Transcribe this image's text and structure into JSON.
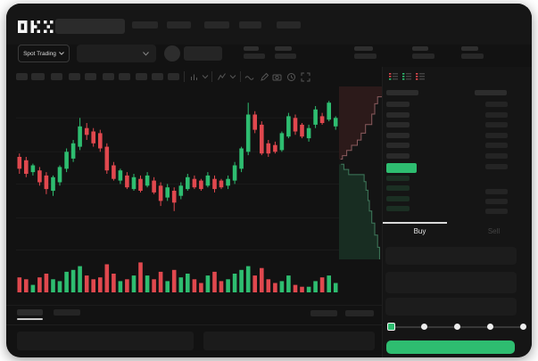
{
  "brand": {
    "name": "OKX"
  },
  "header": {
    "market_selector_label": "Spot Trading"
  },
  "colors": {
    "up": "#2EBD70",
    "down": "#E0484E",
    "buy_button": "#2EBD70",
    "tab_indicator": "#d9d9d9"
  },
  "trade_panel": {
    "buy_tab": "Buy",
    "sell_tab": "Sell",
    "slider": {
      "stops": 5,
      "active": 0
    }
  },
  "order_book": {
    "layout_icons": [
      "book-combined",
      "book-bids-only",
      "book-asks-only"
    ],
    "asks": [
      {
        "amt": true
      },
      {
        "amt": true
      },
      {
        "amt": true
      },
      {
        "amt": true
      },
      {
        "amt": true
      },
      {
        "amt": true
      }
    ],
    "last_price": {
      "highlight": "up",
      "amt": true
    },
    "bids": [
      {
        "amt": false
      },
      {
        "amt": true
      },
      {
        "amt": true
      },
      {
        "amt": true
      }
    ]
  },
  "chart_data": {
    "type": "candlestick",
    "title": "",
    "xlabel": "",
    "ylabel": "",
    "ylim": [
      0,
      100
    ],
    "grid": true,
    "gridlines_price": [
      83,
      63,
      44,
      24,
      5
    ],
    "candles": [
      [
        60,
        62,
        50,
        53
      ],
      [
        58,
        60,
        48,
        50
      ],
      [
        51,
        56,
        49,
        55
      ],
      [
        52,
        54,
        43,
        45
      ],
      [
        49,
        51,
        38,
        41
      ],
      [
        40,
        49,
        37,
        48
      ],
      [
        45,
        55,
        43,
        54
      ],
      [
        53,
        65,
        51,
        63
      ],
      [
        59,
        70,
        57,
        68
      ],
      [
        66,
        83,
        64,
        78
      ],
      [
        77,
        80,
        70,
        73
      ],
      [
        75,
        77,
        66,
        68
      ],
      [
        74,
        76,
        63,
        65
      ],
      [
        66,
        68,
        50,
        52
      ],
      [
        55,
        57,
        46,
        47
      ],
      [
        46,
        53,
        44,
        52
      ],
      [
        49,
        51,
        41,
        42
      ],
      [
        41,
        50,
        40,
        48
      ],
      [
        47,
        49,
        39,
        40
      ],
      [
        43,
        51,
        42,
        49
      ],
      [
        46,
        48,
        38,
        39
      ],
      [
        43,
        45,
        31,
        34
      ],
      [
        36,
        44,
        34,
        42
      ],
      [
        40,
        42,
        28,
        33
      ],
      [
        37,
        45,
        35,
        43
      ],
      [
        41,
        50,
        40,
        48
      ],
      [
        47,
        49,
        41,
        42
      ],
      [
        46,
        47,
        40,
        41
      ],
      [
        43,
        51,
        42,
        49
      ],
      [
        47,
        49,
        39,
        41
      ],
      [
        46,
        47,
        41,
        42
      ],
      [
        43,
        49,
        41,
        47
      ],
      [
        46,
        57,
        44,
        55
      ],
      [
        53,
        66,
        51,
        65
      ],
      [
        63,
        92,
        61,
        85
      ],
      [
        85,
        87,
        74,
        76
      ],
      [
        79,
        81,
        61,
        62
      ],
      [
        68,
        70,
        60,
        62
      ],
      [
        67,
        69,
        62,
        63
      ],
      [
        64,
        75,
        63,
        74
      ],
      [
        72,
        86,
        71,
        84
      ],
      [
        83,
        85,
        73,
        75
      ],
      [
        79,
        80,
        71,
        72
      ],
      [
        71,
        79,
        69,
        77
      ],
      [
        79,
        90,
        77,
        88
      ],
      [
        84,
        86,
        79,
        80
      ],
      [
        82,
        93,
        81,
        92
      ],
      [
        78,
        84,
        76,
        83
      ]
    ],
    "volume": [
      8,
      7,
      4,
      8,
      10,
      7,
      6,
      11,
      12,
      14,
      9,
      7,
      8,
      15,
      10,
      6,
      7,
      9,
      16,
      9,
      7,
      11,
      6,
      12,
      8,
      10,
      7,
      5,
      9,
      11,
      6,
      7,
      10,
      12,
      14,
      9,
      13,
      7,
      5,
      6,
      9,
      4,
      3,
      3,
      6,
      8,
      9,
      5
    ],
    "depth": {
      "asks": [
        [
          0.9,
          0.0
        ],
        [
          0.8,
          0.06
        ],
        [
          0.74,
          0.1
        ],
        [
          0.68,
          0.16
        ],
        [
          0.55,
          0.22
        ],
        [
          0.46,
          0.27
        ],
        [
          0.38,
          0.31
        ],
        [
          0.26,
          0.34
        ],
        [
          0.16,
          0.37
        ],
        [
          0.07,
          0.4
        ],
        [
          0.03,
          0.42
        ]
      ],
      "bids": [
        [
          0.04,
          0.45
        ],
        [
          0.1,
          0.48
        ],
        [
          0.2,
          0.51
        ],
        [
          0.52,
          0.55
        ],
        [
          0.56,
          0.6
        ],
        [
          0.6,
          0.66
        ],
        [
          0.63,
          0.72
        ],
        [
          0.68,
          0.79
        ],
        [
          0.74,
          0.86
        ],
        [
          0.8,
          0.93
        ],
        [
          0.84,
          1.0
        ]
      ]
    }
  }
}
